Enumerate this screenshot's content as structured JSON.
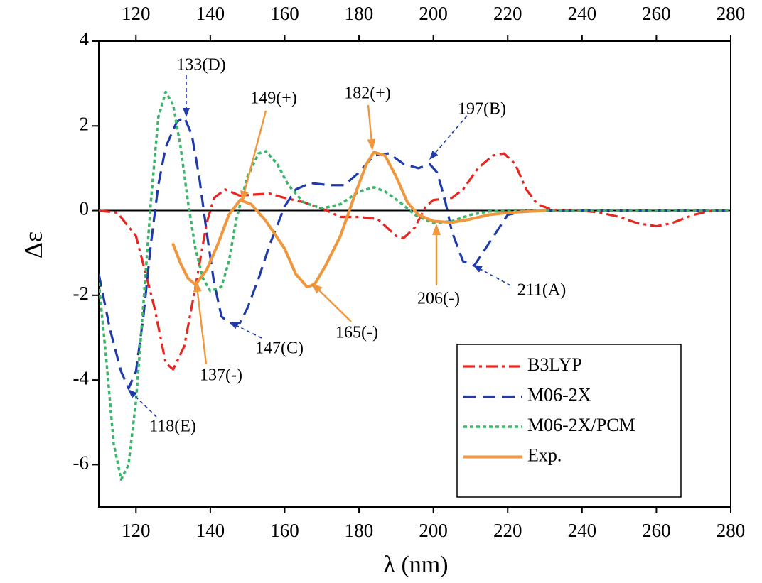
{
  "chart_data": {
    "type": "line",
    "xlabel": "λ (nm)",
    "ylabel": "Δε",
    "xlim": [
      110,
      280
    ],
    "xticks": [
      120,
      140,
      160,
      180,
      200,
      220,
      240,
      260,
      280
    ],
    "ylim": [
      -7,
      4
    ],
    "yticks": [
      -6,
      -4,
      -2,
      0,
      2,
      4
    ],
    "legend": "lower right",
    "series": [
      {
        "name": "B3LYP",
        "color": "#e8261f",
        "dash": "dash-dot",
        "x": [
          110,
          115,
          120,
          125,
          128,
          130,
          133,
          136,
          139,
          141,
          144,
          148,
          152,
          156,
          160,
          165,
          170,
          175,
          180,
          185,
          190,
          192,
          195,
          198,
          200,
          205,
          208,
          212,
          216,
          219,
          222,
          225,
          228,
          232,
          240,
          245,
          250,
          255,
          260,
          264,
          270,
          275,
          280
        ],
        "values": [
          0,
          -0.05,
          -0.6,
          -2.3,
          -3.6,
          -3.75,
          -3.2,
          -1.8,
          -0.3,
          0.3,
          0.5,
          0.35,
          0.38,
          0.4,
          0.3,
          0.2,
          0.05,
          -0.15,
          -0.15,
          -0.2,
          -0.6,
          -0.65,
          -0.4,
          0.1,
          0.25,
          0.3,
          0.5,
          1.0,
          1.3,
          1.35,
          1.1,
          0.5,
          0.15,
          0.02,
          0,
          -0.05,
          -0.15,
          -0.3,
          -0.37,
          -0.3,
          -0.1,
          0,
          0
        ]
      },
      {
        "name": "M06-2X",
        "color": "#1f3bab",
        "dash": "dash",
        "x": [
          110,
          113,
          116,
          118,
          120,
          122,
          124,
          126,
          128,
          131,
          133,
          135,
          137,
          139,
          141,
          143,
          145,
          148,
          150,
          153,
          156,
          160,
          163,
          167,
          172,
          176,
          180,
          184,
          188,
          192,
          196,
          199,
          201,
          203,
          205,
          208,
          211,
          214,
          217,
          220,
          225,
          280
        ],
        "values": [
          -1.5,
          -2.8,
          -3.8,
          -4.2,
          -3.8,
          -2.5,
          -0.8,
          0.6,
          1.5,
          2.1,
          2.2,
          1.8,
          0.8,
          -0.5,
          -1.7,
          -2.5,
          -2.65,
          -2.65,
          -2.3,
          -1.6,
          -0.8,
          0.1,
          0.5,
          0.65,
          0.6,
          0.6,
          0.9,
          1.3,
          1.35,
          1.1,
          1.0,
          1.1,
          0.9,
          0.3,
          -0.5,
          -1.2,
          -1.3,
          -0.9,
          -0.5,
          -0.1,
          0,
          0
        ]
      },
      {
        "name": "M06-2X/PCM",
        "color": "#3cb46a",
        "dash": "dot",
        "x": [
          110,
          112,
          114,
          116,
          118,
          120,
          122,
          124,
          126,
          128,
          130,
          132,
          134,
          136,
          138,
          140,
          143,
          145,
          147,
          150,
          153,
          155,
          158,
          161,
          165,
          170,
          175,
          180,
          184,
          187,
          191,
          195,
          200,
          205,
          210,
          215,
          220,
          280
        ],
        "values": [
          -1.7,
          -3.5,
          -5.5,
          -6.35,
          -6.0,
          -4.5,
          -2.2,
          0.2,
          2.2,
          2.8,
          2.5,
          1.5,
          0.2,
          -0.9,
          -1.6,
          -1.9,
          -1.8,
          -1.2,
          -0.2,
          0.8,
          1.35,
          1.4,
          1.1,
          0.6,
          0.2,
          0.05,
          0.15,
          0.45,
          0.55,
          0.45,
          0.2,
          -0.1,
          -0.3,
          -0.25,
          -0.1,
          -0.02,
          0,
          0
        ]
      },
      {
        "name": "Exp.",
        "color": "#f0963c",
        "dash": "solid",
        "x": [
          130,
          132,
          134,
          136,
          139,
          142,
          145,
          148,
          151,
          155,
          160,
          163,
          166,
          168,
          171,
          175,
          179,
          182,
          184,
          187,
          190,
          193,
          196,
          200,
          205,
          210,
          215,
          220,
          230
        ],
        "values": [
          -0.8,
          -1.25,
          -1.6,
          -1.75,
          -1.4,
          -0.8,
          -0.1,
          0.25,
          0.15,
          -0.25,
          -0.9,
          -1.5,
          -1.8,
          -1.75,
          -1.3,
          -0.6,
          0.4,
          1.1,
          1.38,
          1.3,
          0.8,
          0.2,
          -0.1,
          -0.25,
          -0.28,
          -0.2,
          -0.1,
          -0.05,
          0
        ]
      }
    ],
    "annotations": [
      {
        "text": "133(D)",
        "color": "#1f3bab"
      },
      {
        "text": "149(+)",
        "color": "#f0963c"
      },
      {
        "text": "182(+)",
        "color": "#f0963c"
      },
      {
        "text": "197(B)",
        "color": "#1f3bab"
      },
      {
        "text": "211(A)",
        "color": "#1f3bab"
      },
      {
        "text": "206(-)",
        "color": "#f0963c"
      },
      {
        "text": "165(-)",
        "color": "#f0963c"
      },
      {
        "text": "147(C)",
        "color": "#1f3bab"
      },
      {
        "text": "137(-)",
        "color": "#f0963c"
      },
      {
        "text": "118(E)",
        "color": "#1f3bab"
      }
    ]
  }
}
